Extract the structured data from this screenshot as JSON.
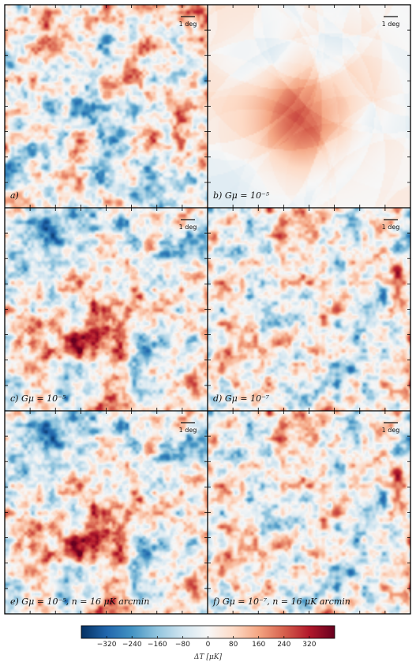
{
  "figure": {
    "panels": [
      {
        "id": "a",
        "label": "a)",
        "scale_bar": "1 deg",
        "kind": "gaussian",
        "seed": 11,
        "amplitude": 0.55,
        "patch_amp": 0,
        "string_amp": 0
      },
      {
        "id": "b",
        "label": "b) Gμ = 10⁻⁵",
        "scale_bar": "1 deg",
        "kind": "strings",
        "seed": 23,
        "amplitude": 0.0,
        "patch_amp": 0.55,
        "string_amp": 0.0
      },
      {
        "id": "c",
        "label": "c) Gμ = 10⁻⁵",
        "scale_bar": "1 deg",
        "kind": "combined",
        "seed": 37,
        "amplitude": 0.55,
        "patch_amp": 0.55,
        "string_amp": 0.15
      },
      {
        "id": "d",
        "label": "d) Gμ = 10⁻⁷",
        "scale_bar": "1 deg",
        "kind": "gaussian",
        "seed": 41,
        "amplitude": 0.55,
        "patch_amp": 0.04,
        "string_amp": 0
      },
      {
        "id": "e",
        "label": "e) Gμ = 10⁻⁵,  n = 16 μK arcmin",
        "scale_bar": "1 deg",
        "kind": "combined",
        "seed": 37,
        "amplitude": 0.55,
        "patch_amp": 0.55,
        "string_amp": 0.15
      },
      {
        "id": "f",
        "label": "f) Gμ = 10⁻⁷,  n = 16 μK arcmin",
        "scale_bar": "1 deg",
        "kind": "gaussian",
        "seed": 41,
        "amplitude": 0.55,
        "patch_amp": 0.04,
        "string_amp": 0
      }
    ],
    "colorbar": {
      "ticks": [
        "−320",
        "−240",
        "−160",
        "−80",
        "0",
        "80",
        "160",
        "240",
        "320"
      ],
      "tick_values": [
        -320,
        -240,
        -160,
        -80,
        0,
        80,
        160,
        240,
        320
      ],
      "range": [
        -400,
        400
      ],
      "label": "ΔT  [μK]",
      "colors": [
        "#053061",
        "#2166ac",
        "#4393c3",
        "#92c5de",
        "#d1e5f0",
        "#f7f7f7",
        "#fddbc7",
        "#f4a582",
        "#d6604d",
        "#b2182b",
        "#67001f"
      ]
    }
  }
}
